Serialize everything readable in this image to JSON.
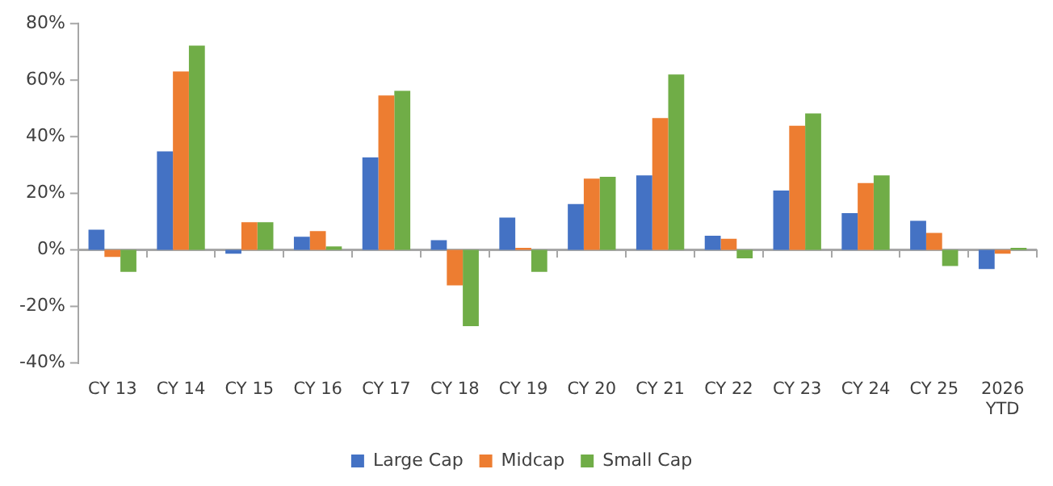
{
  "chart_data": {
    "type": "bar",
    "categories": [
      "CY 13",
      "CY 14",
      "CY 15",
      "CY 16",
      "CY 17",
      "CY 18",
      "CY 19",
      "CY 20",
      "CY 21",
      "CY 22",
      "CY 23",
      "CY 24",
      "CY 25",
      "2026 YTD"
    ],
    "series": [
      {
        "name": "Large Cap",
        "color": "#4472c4",
        "values": [
          7.1,
          34.8,
          -1.4,
          4.6,
          32.7,
          3.4,
          11.4,
          16.2,
          26.3,
          5.0,
          21.0,
          13.0,
          10.3,
          -6.8
        ]
      },
      {
        "name": "Midcap",
        "color": "#ed7d31",
        "values": [
          -2.5,
          63.1,
          9.8,
          6.6,
          54.6,
          -12.6,
          0.7,
          25.2,
          46.6,
          3.9,
          43.9,
          23.6,
          6.0,
          -1.4
        ]
      },
      {
        "name": "Small Cap",
        "color": "#70ad47",
        "values": [
          -7.8,
          72.2,
          9.8,
          1.2,
          56.2,
          -27.0,
          -7.8,
          25.8,
          62.0,
          -3.0,
          48.2,
          26.3,
          -5.7,
          0.7
        ]
      }
    ],
    "ylim": [
      -40,
      80
    ],
    "yticks": [
      {
        "value": -40,
        "label": "-40%"
      },
      {
        "value": -20,
        "label": "-20%"
      },
      {
        "value": 0,
        "label": "0%"
      },
      {
        "value": 20,
        "label": "20%"
      },
      {
        "value": 40,
        "label": "40%"
      },
      {
        "value": 60,
        "label": "60%"
      },
      {
        "value": 80,
        "label": "80%"
      }
    ],
    "ref_lines": [
      {
        "axis": "y",
        "value": 0,
        "color": "#a6a6a6"
      }
    ],
    "grid": false,
    "legend": "bottom"
  }
}
